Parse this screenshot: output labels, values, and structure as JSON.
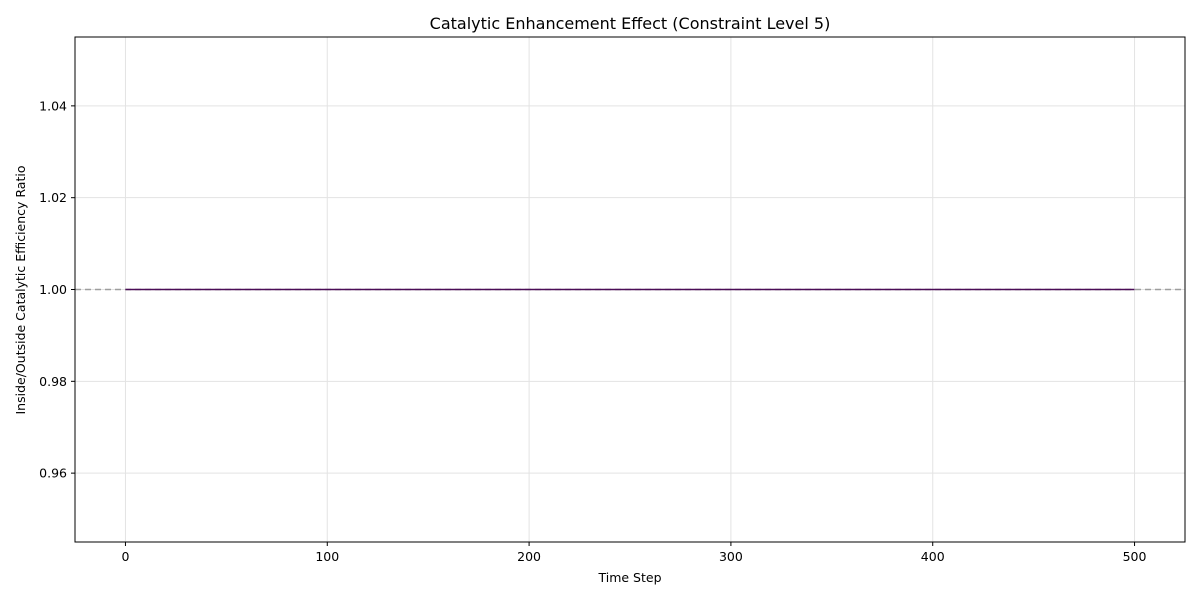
{
  "chart_data": {
    "type": "line",
    "title": "Catalytic Enhancement Effect (Constraint Level 5)",
    "xlabel": "Time Step",
    "ylabel": "Inside/Outside Catalytic Efficiency Ratio",
    "xlim": [
      -25,
      525
    ],
    "ylim": [
      0.945,
      1.055
    ],
    "x_ticks": [
      0,
      100,
      200,
      300,
      400,
      500
    ],
    "y_ticks": [
      0.96,
      0.98,
      1.0,
      1.02,
      1.04
    ],
    "y_tick_labels": [
      "0.96",
      "0.98",
      "1.00",
      "1.02",
      "1.04"
    ],
    "grid": true,
    "series": [
      {
        "color": "#4b0d57",
        "x": [
          0,
          500
        ],
        "y": [
          1.0,
          1.0
        ]
      }
    ],
    "reference_line": {
      "y": 1.0,
      "style": "dashed",
      "color": "#9e9e9e"
    }
  }
}
